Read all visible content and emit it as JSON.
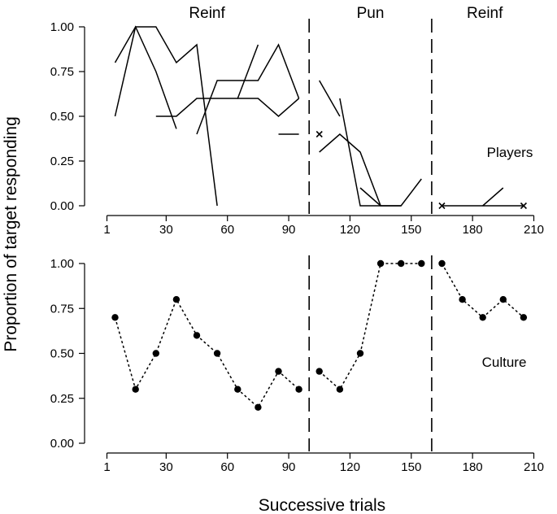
{
  "chart_data": [
    {
      "type": "line",
      "panel": "top",
      "annotation": "Players",
      "ylabel": "Proportion of target responding",
      "xlabel": "Successive trials",
      "xlim": [
        -3,
        212
      ],
      "ylim": [
        0,
        1
      ],
      "yticks": [
        "0.00",
        "0.25",
        "0.50",
        "0.75",
        "1.00"
      ],
      "xticks": [
        "1",
        "30",
        "60",
        "90",
        "120",
        "150",
        "180",
        "210"
      ],
      "xtick_values": [
        1,
        30,
        60,
        90,
        120,
        150,
        180,
        210
      ],
      "phases": [
        {
          "label": "Reinf",
          "start": 0,
          "end": 100
        },
        {
          "label": "Pun",
          "start": 100,
          "end": 160
        },
        {
          "label": "Reinf",
          "start": 160,
          "end": 212
        }
      ],
      "phase_boundaries": [
        100,
        160
      ],
      "series": [
        {
          "name": "player-1",
          "points": [
            [
              5,
              0.8
            ],
            [
              15,
              1.0
            ],
            [
              25,
              0.75
            ],
            [
              35,
              0.43
            ]
          ]
        },
        {
          "name": "player-2",
          "points": [
            [
              5,
              0.5
            ],
            [
              15,
              1.0
            ],
            [
              25,
              1.0
            ],
            [
              35,
              0.8
            ],
            [
              45,
              0.9
            ],
            [
              55,
              0.0
            ]
          ]
        },
        {
          "name": "player-3",
          "points": [
            [
              25,
              0.5
            ],
            [
              35,
              0.5
            ],
            [
              45,
              0.6
            ],
            [
              55,
              0.6
            ],
            [
              65,
              0.6
            ],
            [
              75,
              0.9
            ]
          ]
        },
        {
          "name": "player-4",
          "points": [
            [
              45,
              0.4
            ],
            [
              55,
              0.7
            ],
            [
              65,
              0.7
            ],
            [
              75,
              0.7
            ],
            [
              85,
              0.9
            ],
            [
              95,
              0.6
            ]
          ]
        },
        {
          "name": "player-5",
          "points": [
            [
              65,
              0.6
            ],
            [
              75,
              0.6
            ],
            [
              85,
              0.5
            ],
            [
              95,
              0.6
            ]
          ]
        },
        {
          "name": "player-6",
          "points": [
            [
              85,
              0.4
            ],
            [
              95,
              0.4
            ]
          ]
        },
        {
          "name": "player-7",
          "points": [
            [
              105,
              0.7
            ],
            [
              115,
              0.5
            ]
          ]
        },
        {
          "name": "player-8",
          "points": [
            [
              105,
              0.3
            ],
            [
              115,
              0.4
            ],
            [
              125,
              0.3
            ],
            [
              135,
              0.0
            ],
            [
              145,
              0.0
            ],
            [
              155,
              0.15
            ]
          ]
        },
        {
          "name": "player-9",
          "points": [
            [
              115,
              0.6
            ],
            [
              125,
              0.0
            ],
            [
              135,
              0.0
            ],
            [
              145,
              0.0
            ]
          ]
        },
        {
          "name": "player-10",
          "points": [
            [
              125,
              0.1
            ],
            [
              135,
              0.0
            ]
          ]
        },
        {
          "name": "player-11",
          "points": [
            [
              165,
              0.0
            ],
            [
              175,
              0.0
            ],
            [
              185,
              0.0
            ],
            [
              195,
              0.1
            ]
          ]
        },
        {
          "name": "player-12",
          "points": [
            [
              185,
              0.0
            ],
            [
              195,
              0.0
            ],
            [
              205,
              0.0
            ]
          ]
        }
      ],
      "markers": [
        {
          "shape": "x",
          "x": 105,
          "y": 0.4
        },
        {
          "shape": "x",
          "x": 165,
          "y": 0.0
        },
        {
          "shape": "x",
          "x": 205,
          "y": 0.0
        }
      ]
    },
    {
      "type": "line",
      "panel": "bottom",
      "annotation": "Culture",
      "line_style": "dotted",
      "marker": "filled-circle",
      "xlim": [
        -3,
        212
      ],
      "ylim": [
        0,
        1
      ],
      "yticks": [
        "0.00",
        "0.25",
        "0.50",
        "0.75",
        "1.00"
      ],
      "xticks": [
        "1",
        "30",
        "60",
        "90",
        "120",
        "150",
        "180",
        "210"
      ],
      "xtick_values": [
        1,
        30,
        60,
        90,
        120,
        150,
        180,
        210
      ],
      "phase_boundaries": [
        100,
        160
      ],
      "series": [
        {
          "name": "culture-reinf-1",
          "x": [
            5,
            15,
            25,
            35,
            45,
            55,
            65,
            75,
            85,
            95
          ],
          "y": [
            0.7,
            0.3,
            0.5,
            0.8,
            0.6,
            0.5,
            0.3,
            0.2,
            0.4,
            0.3
          ]
        },
        {
          "name": "culture-pun",
          "x": [
            105,
            115,
            125,
            135,
            145,
            155
          ],
          "y": [
            0.4,
            0.3,
            0.5,
            1.0,
            1.0,
            1.0
          ]
        },
        {
          "name": "culture-reinf-2",
          "x": [
            165,
            175,
            185,
            195,
            205
          ],
          "y": [
            1.0,
            0.8,
            0.7,
            0.8,
            0.7
          ]
        }
      ]
    }
  ]
}
